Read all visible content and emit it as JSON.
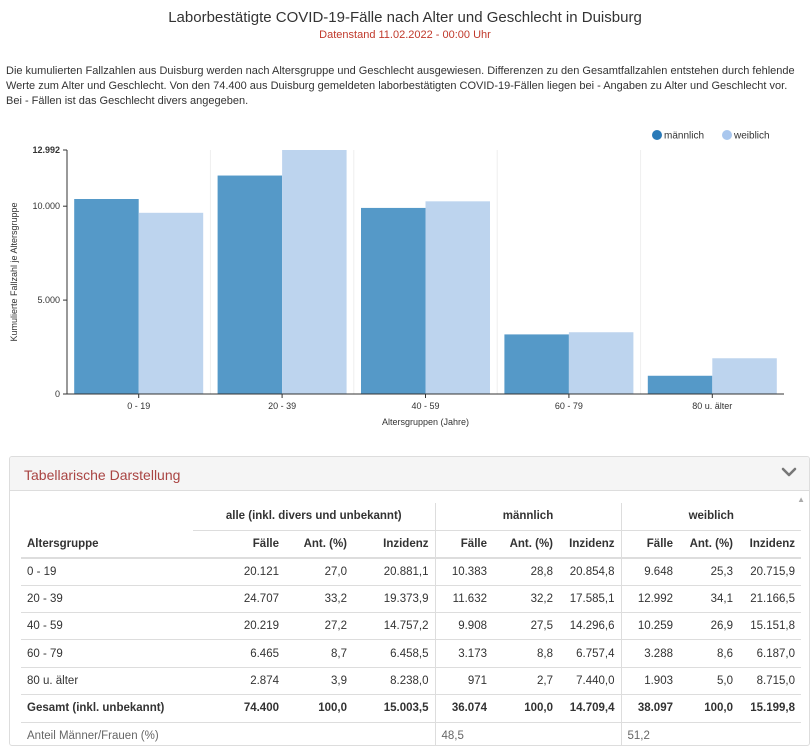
{
  "chart_data": {
    "type": "bar",
    "title": "Laborbestätigte COVID-19-Fälle nach Alter und Geschlecht in Duisburg",
    "subtitle": "Datenstand 11.02.2022 - 00:00 Uhr",
    "xlabel": "Altersgruppen (Jahre)",
    "ylabel": "Kumulierte Fallzahl je Altersgruppe",
    "categories": [
      "0 - 19",
      "20 - 39",
      "40 - 59",
      "60 - 79",
      "80 u. älter"
    ],
    "series": [
      {
        "name": "männlich",
        "values": [
          10383,
          11632,
          9908,
          3173,
          971
        ],
        "color": "#5599c8"
      },
      {
        "name": "weiblich",
        "values": [
          9648,
          12992,
          10259,
          3288,
          1903
        ],
        "color": "#bdd4ee"
      }
    ],
    "ylim": [
      0,
      12992
    ],
    "yticks": [
      0,
      5000,
      10000,
      12992
    ],
    "ytick_labels": [
      "0",
      "5.000",
      "10.000",
      "12.992"
    ],
    "legend_position": "top-right",
    "grid": "vertical"
  },
  "description": "Die kumulierten Fallzahlen aus Duisburg werden nach Altersgruppe und Geschlecht ausgewiesen. Differenzen zu den Gesamtfallzahlen entstehen durch fehlende Werte zum Alter und Geschlecht. Von den 74.400 aus Duisburg gemeldeten laborbestätigten COVID-19-Fällen liegen bei - Angaben zu Alter und Geschlecht vor. Bei - Fällen ist das Geschlecht divers angegeben.",
  "panel": {
    "title": "Tabellarische Darstellung",
    "toggle_icon": "chevron-down-icon"
  },
  "table": {
    "group_headers": [
      "alle (inkl. divers und unbekannt)",
      "männlich",
      "weiblich"
    ],
    "columns": [
      "Altersgruppe",
      "Fälle",
      "Ant. (%)",
      "Inzidenz",
      "Fälle",
      "Ant. (%)",
      "Inzidenz",
      "Fälle",
      "Ant. (%)",
      "Inzidenz"
    ],
    "rows": [
      [
        "0 - 19",
        "20.121",
        "27,0",
        "20.881,1",
        "10.383",
        "28,8",
        "20.854,8",
        "9.648",
        "25,3",
        "20.715,9"
      ],
      [
        "20 - 39",
        "24.707",
        "33,2",
        "19.373,9",
        "11.632",
        "32,2",
        "17.585,1",
        "12.992",
        "34,1",
        "21.166,5"
      ],
      [
        "40 - 59",
        "20.219",
        "27,2",
        "14.757,2",
        "9.908",
        "27,5",
        "14.296,6",
        "10.259",
        "26,9",
        "15.151,8"
      ],
      [
        "60 - 79",
        "6.465",
        "8,7",
        "6.458,5",
        "3.173",
        "8,8",
        "6.757,4",
        "3.288",
        "8,6",
        "6.187,0"
      ],
      [
        "80 u. älter",
        "2.874",
        "3,9",
        "8.238,0",
        "971",
        "2,7",
        "7.440,0",
        "1.903",
        "5,0",
        "8.715,0"
      ]
    ],
    "total": [
      "Gesamt (inkl. unbekannt)",
      "74.400",
      "100,0",
      "15.003,5",
      "36.074",
      "100,0",
      "14.709,4",
      "38.097",
      "100,0",
      "15.199,8"
    ],
    "ratio": {
      "label": "Anteil Männer/Frauen (%)",
      "male": "48,5",
      "female": "51,2"
    }
  }
}
